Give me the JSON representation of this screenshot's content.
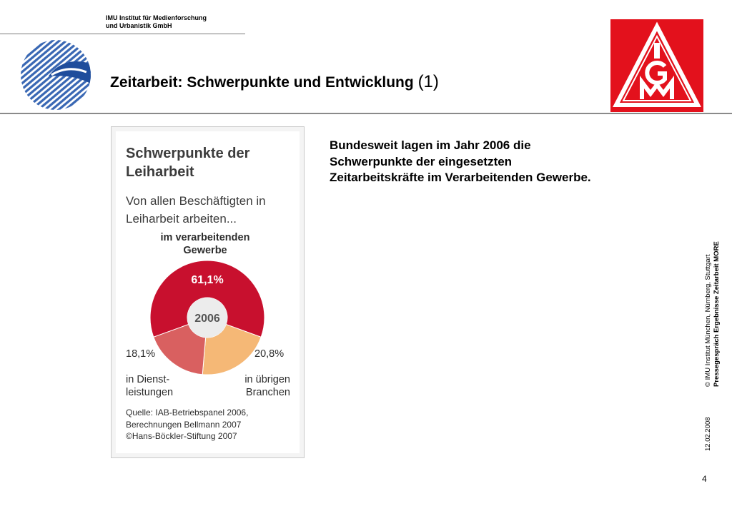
{
  "header": {
    "institute_line1": "IMU Institut für Medienforschung",
    "institute_line2": "und Urbanistik GmbH",
    "title": "Zeitarbeit: Schwerpunkte und Entwicklung",
    "title_number": "(1)"
  },
  "body_text": "Bundesweit lagen im Jahr 2006 die Schwerpunkte der eingesetzten Zeitarbeitskräfte im Verarbeitenden Gewerbe.",
  "sidebar": {
    "copyright": "© IMU Institut München, Nürnberg, Stuttgart",
    "event": "Pressegespräch Ergebnisse Zeitarbeit MORE",
    "date": "12.02.2008"
  },
  "page_number": "4",
  "colors": {
    "verarbeitend": "#c8102e",
    "dienstleistungen": "#d96060",
    "uebrige": "#f5b876",
    "igm_red": "#e3111c"
  },
  "chart_data": {
    "type": "pie",
    "title_line1": "Schwerpunkte der",
    "title_line2": "Leiharbeit",
    "subtitle_line1": "Von allen Beschäftigten in",
    "subtitle_line2": "Leiharbeit arbeiten...",
    "center_label": "2006",
    "series": [
      {
        "label_line1": "im verarbeitenden",
        "label_line2": "Gewerbe",
        "value": 61.1,
        "value_label": "61,1%"
      },
      {
        "label_line1": "in übrigen",
        "label_line2": "Branchen",
        "value": 20.8,
        "value_label": "20,8%"
      },
      {
        "label_line1": "in Dienst-",
        "label_line2": "leistungen",
        "value": 18.1,
        "value_label": "18,1%"
      }
    ],
    "source_line1": "Quelle: IAB-Betriebspanel 2006,",
    "source_line2": "Berechnungen Bellmann 2007",
    "source_line3": "©Hans-Böckler-Stiftung 2007"
  }
}
